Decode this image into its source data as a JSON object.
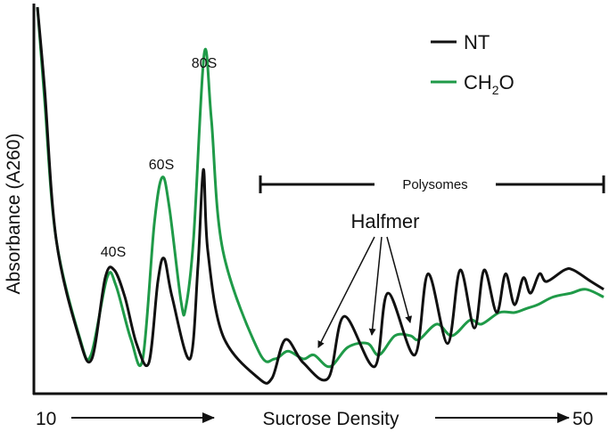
{
  "chart_data": {
    "type": "line",
    "xlabel": "Sucrose Density",
    "ylabel": "Absorbance (A260)",
    "x_start_label": "10",
    "x_end_label": "50",
    "xlim": [
      10,
      50
    ],
    "ylim": [
      0,
      1
    ],
    "grid": false,
    "legend_position": "top-right",
    "series": [
      {
        "name": "NT",
        "color": "#111111",
        "points": [
          [
            10.25,
            1.0
          ],
          [
            10.75,
            0.79
          ],
          [
            11.56,
            0.4
          ],
          [
            13.13,
            0.15
          ],
          [
            14.06,
            0.09
          ],
          [
            15.0,
            0.3
          ],
          [
            15.63,
            0.32
          ],
          [
            16.38,
            0.25
          ],
          [
            17.19,
            0.13
          ],
          [
            18.06,
            0.08
          ],
          [
            18.69,
            0.29
          ],
          [
            19.13,
            0.35
          ],
          [
            19.69,
            0.25
          ],
          [
            20.94,
            0.09
          ],
          [
            21.5,
            0.33
          ],
          [
            21.88,
            0.58
          ],
          [
            22.19,
            0.37
          ],
          [
            23.25,
            0.15
          ],
          [
            25.75,
            0.04
          ],
          [
            26.69,
            0.04
          ],
          [
            27.63,
            0.14
          ],
          [
            28.88,
            0.08
          ],
          [
            30.63,
            0.04
          ],
          [
            31.75,
            0.2
          ],
          [
            33.88,
            0.07
          ],
          [
            34.81,
            0.26
          ],
          [
            36.69,
            0.1
          ],
          [
            37.63,
            0.31
          ],
          [
            39.0,
            0.13
          ],
          [
            39.88,
            0.32
          ],
          [
            40.88,
            0.17
          ],
          [
            41.56,
            0.32
          ],
          [
            42.44,
            0.21
          ],
          [
            43.06,
            0.31
          ],
          [
            43.69,
            0.23
          ],
          [
            44.31,
            0.3
          ],
          [
            44.81,
            0.26
          ],
          [
            45.44,
            0.31
          ],
          [
            45.94,
            0.29
          ],
          [
            47.19,
            0.32
          ],
          [
            47.81,
            0.32
          ],
          [
            49.06,
            0.29
          ],
          [
            49.94,
            0.27
          ]
        ]
      },
      {
        "name": "CH2O",
        "name_parts": [
          "CH",
          "2",
          "O"
        ],
        "color": "#1f9a48",
        "points": [
          [
            10.25,
            1.0
          ],
          [
            10.75,
            0.76
          ],
          [
            11.56,
            0.4
          ],
          [
            13.25,
            0.14
          ],
          [
            14.0,
            0.1
          ],
          [
            15.13,
            0.3
          ],
          [
            15.75,
            0.28
          ],
          [
            16.81,
            0.14
          ],
          [
            17.63,
            0.09
          ],
          [
            18.44,
            0.44
          ],
          [
            19.0,
            0.56
          ],
          [
            19.5,
            0.48
          ],
          [
            20.31,
            0.24
          ],
          [
            20.63,
            0.22
          ],
          [
            21.19,
            0.4
          ],
          [
            21.94,
            0.88
          ],
          [
            22.44,
            0.71
          ],
          [
            23.25,
            0.37
          ],
          [
            25.75,
            0.11
          ],
          [
            26.88,
            0.09
          ],
          [
            27.81,
            0.11
          ],
          [
            28.88,
            0.09
          ],
          [
            29.63,
            0.1
          ],
          [
            30.75,
            0.07
          ],
          [
            32.0,
            0.12
          ],
          [
            33.38,
            0.13
          ],
          [
            34.19,
            0.1
          ],
          [
            35.31,
            0.15
          ],
          [
            36.38,
            0.15
          ],
          [
            37.0,
            0.14
          ],
          [
            38.25,
            0.18
          ],
          [
            39.31,
            0.15
          ],
          [
            40.56,
            0.19
          ],
          [
            41.38,
            0.18
          ],
          [
            42.63,
            0.21
          ],
          [
            43.69,
            0.21
          ],
          [
            44.5,
            0.22
          ],
          [
            45.31,
            0.23
          ],
          [
            46.38,
            0.25
          ],
          [
            47.63,
            0.26
          ],
          [
            48.69,
            0.27
          ],
          [
            49.94,
            0.25
          ]
        ]
      }
    ],
    "annotations": {
      "peak_40s": "40S",
      "peak_60s": "60S",
      "peak_80s": "80S",
      "polysomes": "Polysomes",
      "halfmer": "Halfmer"
    }
  }
}
